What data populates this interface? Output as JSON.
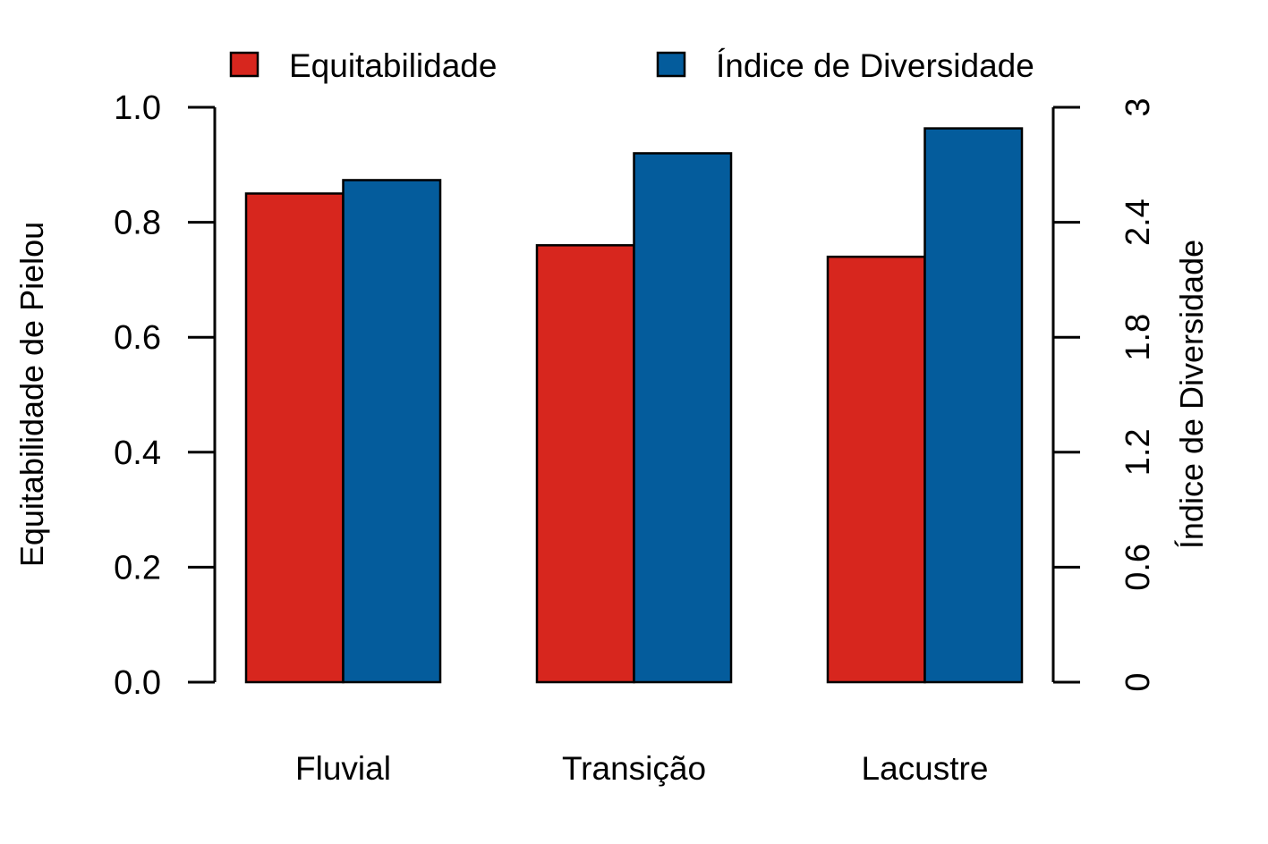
{
  "chart_data": {
    "type": "bar",
    "categories": [
      "Fluvial",
      "Transição",
      "Lacustre"
    ],
    "series": [
      {
        "name": "Equitabilidade",
        "axis": "left",
        "color": "#D7261E",
        "values": [
          0.85,
          0.76,
          0.74
        ]
      },
      {
        "name": "Índice de Diversidade",
        "axis": "right",
        "color": "#045C9C",
        "values": [
          2.62,
          2.76,
          2.89
        ]
      }
    ],
    "ylabel": "Equitabilidade de Pielou",
    "ylabel_right": "Índice de Diversidade",
    "ylim": [
      0,
      1
    ],
    "ylim_right": [
      0,
      3
    ],
    "yticks": [
      "0.0",
      "0.2",
      "0.4",
      "0.6",
      "0.8",
      "1.0"
    ],
    "yticks_right": [
      "0",
      "0.6",
      "1.2",
      "1.8",
      "2.4",
      "3"
    ],
    "legend_position": "top",
    "grid": false
  }
}
